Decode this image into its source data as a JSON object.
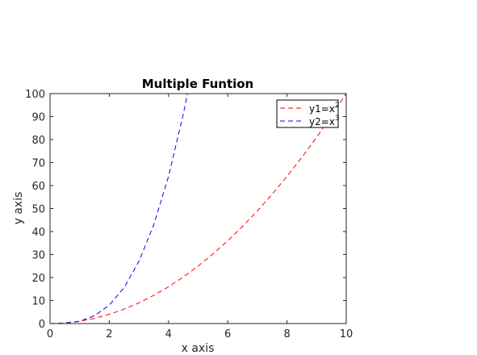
{
  "chart_data": {
    "type": "line",
    "title": "Multiple Funtion",
    "xlabel": "x axis",
    "ylabel": "y axis",
    "xlim": [
      0,
      10
    ],
    "ylim": [
      0,
      100
    ],
    "xticks": [
      0,
      2,
      4,
      6,
      8,
      10
    ],
    "yticks": [
      0,
      10,
      20,
      30,
      40,
      50,
      60,
      70,
      80,
      90,
      100
    ],
    "grid": false,
    "legend_position": "top-right",
    "series": [
      {
        "name": "y1=x",
        "name_exponent": "2",
        "color": "#ff0000",
        "line_style": "dashed",
        "x": [
          0,
          0.5,
          1,
          1.5,
          2,
          2.5,
          3,
          3.5,
          4,
          4.5,
          5,
          5.5,
          6,
          6.5,
          7,
          7.5,
          8,
          8.5,
          9,
          9.5,
          10
        ],
        "y": [
          0,
          0.25,
          1,
          2.25,
          4,
          6.25,
          9,
          12.25,
          16,
          20.25,
          25,
          30.25,
          36,
          42.25,
          49,
          56.25,
          64,
          72.25,
          81,
          90.25,
          100
        ]
      },
      {
        "name": "y2=x",
        "name_exponent": "3",
        "color": "#0000ff",
        "line_style": "dashed",
        "x": [
          0,
          0.5,
          1,
          1.5,
          2,
          2.5,
          3,
          3.5,
          4,
          4.5,
          4.64
        ],
        "y": [
          0,
          0.125,
          1,
          3.375,
          8,
          15.625,
          27,
          42.875,
          64,
          91.125,
          100
        ]
      }
    ]
  }
}
